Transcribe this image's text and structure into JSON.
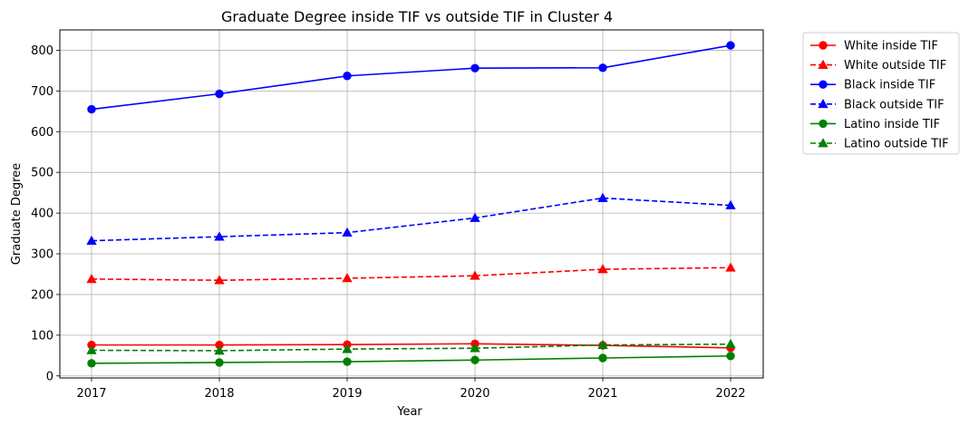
{
  "chart_data": {
    "type": "line",
    "title": "Graduate Degree inside TIF vs outside TIF in Cluster 4",
    "xlabel": "Year",
    "ylabel": "Graduate Degree",
    "x": [
      2017,
      2018,
      2019,
      2020,
      2021,
      2022
    ],
    "x_tick_labels": [
      "2017",
      "2018",
      "2019",
      "2020",
      "2021",
      "2022"
    ],
    "ylim": [
      -5,
      850
    ],
    "y_ticks": [
      0,
      100,
      200,
      300,
      400,
      500,
      600,
      700,
      800
    ],
    "y_tick_labels": [
      "0",
      "100",
      "200",
      "300",
      "400",
      "500",
      "600",
      "700",
      "800"
    ],
    "grid": true,
    "legend_position": "outside-top-right",
    "series": [
      {
        "name": "White inside TIF",
        "color": "#ff0000",
        "linestyle": "solid",
        "marker": "circle",
        "values": [
          76,
          76,
          77,
          79,
          75,
          69
        ]
      },
      {
        "name": "White outside TIF",
        "color": "#ff0000",
        "linestyle": "dashed",
        "marker": "triangle",
        "values": [
          238,
          235,
          240,
          246,
          262,
          266
        ]
      },
      {
        "name": "Black inside TIF",
        "color": "#0000ff",
        "linestyle": "solid",
        "marker": "circle",
        "values": [
          655,
          693,
          737,
          756,
          757,
          812
        ]
      },
      {
        "name": "Black outside TIF",
        "color": "#0000ff",
        "linestyle": "dashed",
        "marker": "triangle",
        "values": [
          332,
          342,
          352,
          388,
          437,
          419
        ]
      },
      {
        "name": "Latino inside TIF",
        "color": "#008000",
        "linestyle": "solid",
        "marker": "circle",
        "values": [
          31,
          33,
          35,
          39,
          44,
          49
        ]
      },
      {
        "name": "Latino outside TIF",
        "color": "#008000",
        "linestyle": "dashed",
        "marker": "triangle",
        "values": [
          63,
          62,
          66,
          68,
          76,
          78
        ]
      }
    ]
  }
}
